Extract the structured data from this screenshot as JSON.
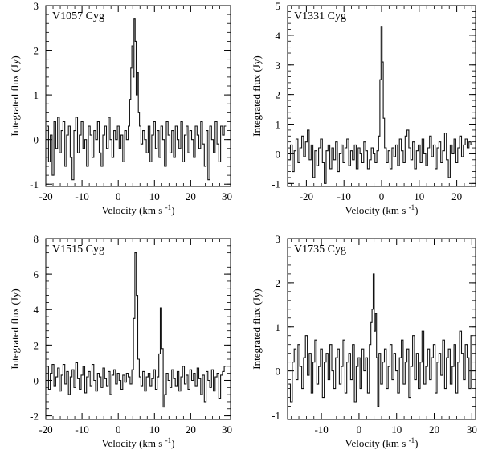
{
  "chart_data": [
    {
      "type": "line",
      "title": "V1057 Cyg",
      "xlabel": "Velocity (km s",
      "xlabel_sup": "-1",
      "xlabel_end": ")",
      "ylabel": "Integrated flux (Jy)",
      "xlim": [
        -20,
        31
      ],
      "ylim": [
        -1.05,
        3
      ],
      "xticks": [
        -20,
        -10,
        0,
        10,
        20,
        30
      ],
      "xtick_labels": [
        "-20",
        "-10",
        "0",
        "10",
        "20",
        "30"
      ],
      "yticks": [
        -1,
        0,
        1,
        2,
        3
      ],
      "ytick_labels": [
        "-1",
        "0",
        "1",
        "2",
        "3"
      ],
      "series": [
        {
          "name": "V1057 Cyg",
          "x": [
            -19.5,
            -19,
            -18.5,
            -18,
            -17.5,
            -17,
            -16.5,
            -16,
            -15.5,
            -15,
            -14.5,
            -14,
            -13.5,
            -13,
            -12.5,
            -12,
            -11.5,
            -11,
            -10.5,
            -10,
            -9.5,
            -9,
            -8.5,
            -8,
            -7.5,
            -7,
            -6.5,
            -6,
            -5.5,
            -5,
            -4.5,
            -4,
            -3.5,
            -3,
            -2.5,
            -2,
            -1.5,
            -1,
            -0.5,
            0,
            0.5,
            1,
            1.5,
            2,
            2.5,
            3,
            3.3,
            3.6,
            3.9,
            4.2,
            4.5,
            4.8,
            5.1,
            5.4,
            5.7,
            6,
            6.5,
            7,
            7.5,
            8,
            8.5,
            9,
            9.5,
            10,
            10.5,
            11,
            11.5,
            12,
            12.5,
            13,
            13.5,
            14,
            14.5,
            15,
            15.5,
            16,
            16.5,
            17,
            17.5,
            18,
            18.5,
            19,
            19.5,
            20,
            20.5,
            21,
            21.5,
            22,
            22.5,
            23,
            23.5,
            24,
            24.5,
            25,
            25.5,
            26,
            26.5,
            27,
            27.5,
            28,
            28.5,
            29,
            29.5
          ],
          "y": [
            0.3,
            -0.5,
            0.1,
            -0.8,
            0.4,
            -0.2,
            0.5,
            -0.3,
            0.2,
            0.4,
            -0.6,
            0.1,
            0.3,
            -0.4,
            -0.9,
            0.2,
            0.5,
            -0.3,
            0.1,
            0.4,
            -0.2,
            0.0,
            -0.6,
            0.3,
            0.1,
            -0.4,
            0.2,
            0.0,
            0.4,
            -0.3,
            -0.6,
            0.1,
            0.3,
            -0.2,
            0.5,
            0.0,
            -0.4,
            0.2,
            0.0,
            0.3,
            -0.2,
            0.1,
            -0.5,
            0.2,
            0.0,
            0.3,
            0.9,
            1.6,
            2.1,
            1.4,
            2.7,
            2.2,
            1.0,
            1.5,
            0.6,
            0.3,
            -0.1,
            0.2,
            0.0,
            -0.3,
            0.3,
            -0.5,
            0.1,
            0.4,
            -0.2,
            0.2,
            -0.4,
            0.3,
            0.0,
            -0.6,
            0.4,
            0.1,
            -0.3,
            0.2,
            -0.4,
            0.3,
            0.0,
            -0.2,
            0.4,
            -0.5,
            0.1,
            0.3,
            -0.3,
            0.2,
            0.0,
            -0.4,
            0.3,
            0.1,
            -0.2,
            0.4,
            -0.1,
            -0.6,
            0.2,
            -0.9,
            0.3,
            0.0,
            -0.3,
            0.4,
            -0.1,
            -0.5,
            0.3,
            0.1,
            0.3
          ]
        }
      ]
    },
    {
      "type": "line",
      "title": "V1331 Cyg",
      "xlabel": "Velocity (km s",
      "xlabel_sup": "-1",
      "xlabel_end": ")",
      "ylabel": "Integrated flux (Jy)",
      "xlim": [
        -25,
        25
      ],
      "ylim": [
        -1.1,
        5
      ],
      "xticks": [
        -20,
        -10,
        0,
        10,
        20
      ],
      "xtick_labels": [
        "-20",
        "-10",
        "0",
        "10",
        "20"
      ],
      "yticks": [
        -1,
        0,
        1,
        2,
        3,
        4,
        5
      ],
      "ytick_labels": [
        "-1",
        "0",
        "1",
        "2",
        "3",
        "4",
        "5"
      ],
      "series": [
        {
          "name": "V1331 Cyg",
          "x": [
            -24.5,
            -24,
            -23.5,
            -23,
            -22.5,
            -22,
            -21.5,
            -21,
            -20.5,
            -20,
            -19.5,
            -19,
            -18.5,
            -18,
            -17.5,
            -17,
            -16.5,
            -16,
            -15.5,
            -15,
            -14.5,
            -14,
            -13.5,
            -13,
            -12.5,
            -12,
            -11.5,
            -11,
            -10.5,
            -10,
            -9.5,
            -9,
            -8.5,
            -8,
            -7.5,
            -7,
            -6.5,
            -6,
            -5.5,
            -5,
            -4.5,
            -4,
            -3.5,
            -3,
            -2.5,
            -2,
            -1.5,
            -1,
            -0.6,
            -0.3,
            0,
            0.3,
            0.6,
            1,
            1.5,
            2,
            2.5,
            3,
            3.5,
            4,
            4.5,
            5,
            5.5,
            6,
            6.5,
            7,
            7.5,
            8,
            8.5,
            9,
            9.5,
            10,
            10.5,
            11,
            11.5,
            12,
            12.5,
            13,
            13.5,
            14,
            14.5,
            15,
            15.5,
            16,
            16.5,
            17,
            17.5,
            18,
            18.5,
            19,
            19.5,
            20,
            20.5,
            21,
            21.5,
            22,
            22.5,
            23,
            23.5,
            24
          ],
          "y": [
            -0.2,
            0.3,
            -0.6,
            0.1,
            0.5,
            -0.3,
            0.2,
            0.6,
            -0.1,
            0.4,
            0.8,
            -0.2,
            0.3,
            -0.8,
            0.1,
            -0.4,
            0.2,
            0.5,
            -0.3,
            -1.0,
            0.1,
            0.3,
            -0.5,
            0.2,
            -0.2,
            0.4,
            -0.6,
            0.0,
            0.3,
            -0.3,
            0.2,
            0.5,
            -0.4,
            0.1,
            -0.2,
            0.3,
            -0.5,
            0.2,
            0.0,
            -0.3,
            0.4,
            0.1,
            -0.5,
            -0.2,
            0.2,
            0.0,
            -0.3,
            0.1,
            0.6,
            2.5,
            4.3,
            3.1,
            1.2,
            0.2,
            -0.3,
            0.1,
            -0.5,
            0.2,
            -0.1,
            0.3,
            -0.4,
            0.5,
            0.1,
            -0.3,
            0.6,
            0.8,
            0.2,
            -0.2,
            0.4,
            -0.5,
            0.1,
            0.3,
            -0.3,
            0.5,
            0.0,
            -0.4,
            0.2,
            0.6,
            -0.1,
            0.3,
            -0.5,
            0.2,
            0.4,
            -0.3,
            0.1,
            0.7,
            -0.2,
            -0.8,
            0.3,
            0.0,
            0.5,
            -0.3,
            0.2,
            0.6,
            -0.1,
            0.3,
            0.5,
            0.2,
            0.4,
            0.3
          ]
        }
      ]
    },
    {
      "type": "line",
      "title": "V1515 Cyg",
      "xlabel": "Velocity (km s",
      "xlabel_sup": "-1",
      "xlabel_end": ")",
      "ylabel": "Integrated flux (Jy)",
      "xlim": [
        -20,
        31
      ],
      "ylim": [
        -2.2,
        8
      ],
      "xticks": [
        -20,
        -10,
        0,
        10,
        20,
        30
      ],
      "xtick_labels": [
        "-20",
        "-10",
        "0",
        "10",
        "20",
        "30"
      ],
      "yticks": [
        -2,
        0,
        2,
        4,
        6,
        8
      ],
      "ytick_labels": [
        "-2",
        "0",
        "2",
        "4",
        "6",
        "8"
      ],
      "series": [
        {
          "name": "V1515 Cyg",
          "x": [
            -19.5,
            -19,
            -18.5,
            -18,
            -17.5,
            -17,
            -16.5,
            -16,
            -15.5,
            -15,
            -14.5,
            -14,
            -13.5,
            -13,
            -12.5,
            -12,
            -11.5,
            -11,
            -10.5,
            -10,
            -9.5,
            -9,
            -8.5,
            -8,
            -7.5,
            -7,
            -6.5,
            -6,
            -5.5,
            -5,
            -4.5,
            -4,
            -3.5,
            -3,
            -2.5,
            -2,
            -1.5,
            -1,
            -0.5,
            0,
            0.5,
            1,
            1.5,
            2,
            2.5,
            3,
            3.5,
            4,
            4.4,
            4.8,
            5.2,
            5.6,
            6,
            6.5,
            7,
            7.5,
            8,
            8.5,
            9,
            9.5,
            10,
            10.5,
            11,
            11.4,
            11.8,
            12.2,
            12.6,
            13,
            13.5,
            14,
            14.5,
            15,
            15.5,
            16,
            16.5,
            17,
            17.5,
            18,
            18.5,
            19,
            19.5,
            20,
            20.5,
            21,
            21.5,
            22,
            22.5,
            23,
            23.5,
            24,
            24.5,
            25,
            25.5,
            26,
            26.5,
            27,
            27.5,
            28,
            28.5,
            29,
            29.5
          ],
          "y": [
            0.8,
            -0.5,
            0.4,
            0.9,
            -0.3,
            0.2,
            0.7,
            -0.6,
            0.3,
            0.9,
            -0.2,
            0.5,
            -0.8,
            0.2,
            0.6,
            -0.4,
            1.0,
            0.1,
            -0.5,
            0.3,
            0.8,
            -0.7,
            0.2,
            0.5,
            -0.3,
            0.9,
            0.0,
            -0.6,
            0.4,
            0.2,
            -0.4,
            0.7,
            0.1,
            -0.3,
            0.5,
            -0.8,
            0.3,
            0.6,
            -0.2,
            0.4,
            0.0,
            -0.5,
            0.3,
            -0.1,
            0.4,
            0.2,
            -0.2,
            0.6,
            3.5,
            7.2,
            4.8,
            1.2,
            0.2,
            -0.3,
            0.5,
            -0.6,
            0.2,
            0.4,
            -0.3,
            0.1,
            0.6,
            -0.5,
            0.2,
            1.5,
            4.1,
            1.8,
            -1.5,
            -0.8,
            0.4,
            0.0,
            -0.4,
            0.6,
            0.1,
            -0.3,
            0.5,
            -0.6,
            0.2,
            0.8,
            -0.2,
            0.3,
            -0.5,
            0.6,
            0.0,
            0.4,
            -0.3,
            0.7,
            0.1,
            -0.8,
            0.3,
            -1.2,
            0.5,
            0.0,
            -0.4,
            0.6,
            -0.6,
            0.2,
            0.4,
            -1.0,
            0.3,
            0.5,
            0.8
          ]
        }
      ]
    },
    {
      "type": "line",
      "title": "V1735 Cyg",
      "xlabel": "Velocity (km s",
      "xlabel_sup": "-1",
      "xlabel_end": ")",
      "ylabel": "Integrated flux (Jy)",
      "xlim": [
        -19,
        31
      ],
      "ylim": [
        -1.1,
        3
      ],
      "xticks": [
        -10,
        0,
        10,
        20,
        30
      ],
      "xtick_labels": [
        "-10",
        "0",
        "10",
        "20",
        "30"
      ],
      "yticks": [
        -1,
        0,
        1,
        2,
        3
      ],
      "ytick_labels": [
        "-1",
        "0",
        "1",
        "2",
        "3"
      ],
      "series": [
        {
          "name": "V1735 Cyg",
          "x": [
            -18.5,
            -18,
            -17.5,
            -17,
            -16.5,
            -16,
            -15.5,
            -15,
            -14.5,
            -14,
            -13.5,
            -13,
            -12.5,
            -12,
            -11.5,
            -11,
            -10.5,
            -10,
            -9.5,
            -9,
            -8.5,
            -8,
            -7.5,
            -7,
            -6.5,
            -6,
            -5.5,
            -5,
            -4.5,
            -4,
            -3.5,
            -3,
            -2.5,
            -2,
            -1.5,
            -1,
            -0.5,
            0,
            0.5,
            1,
            1.5,
            2,
            2.5,
            3,
            3.3,
            3.6,
            3.9,
            4.2,
            4.5,
            4.8,
            5.1,
            5.5,
            6,
            6.5,
            7,
            7.5,
            8,
            8.5,
            9,
            9.5,
            10,
            10.5,
            11,
            11.5,
            12,
            12.5,
            13,
            13.5,
            14,
            14.5,
            15,
            15.5,
            16,
            16.5,
            17,
            17.5,
            18,
            18.5,
            19,
            19.5,
            20,
            20.5,
            21,
            21.5,
            22,
            22.5,
            23,
            23.5,
            24,
            24.5,
            25,
            25.5,
            26,
            26.5,
            27,
            27.5,
            28,
            28.5,
            29,
            29.5,
            30
          ],
          "y": [
            -0.3,
            -0.7,
            0.2,
            0.5,
            -0.2,
            0.6,
            0.1,
            -0.4,
            0.3,
            0.8,
            -0.1,
            0.4,
            -0.5,
            0.2,
            0.7,
            -0.3,
            0.1,
            0.5,
            -0.6,
            0.2,
            0.4,
            -0.2,
            0.6,
            0.0,
            -0.4,
            0.3,
            0.5,
            -0.3,
            0.1,
            0.7,
            -0.5,
            0.2,
            0.4,
            -0.2,
            0.6,
            -0.7,
            0.1,
            0.3,
            -0.4,
            0.5,
            0.0,
            0.3,
            -0.5,
            0.6,
            1.1,
            1.4,
            2.2,
            0.9,
            1.3,
            0.3,
            -0.8,
            0.4,
            -0.3,
            0.2,
            0.5,
            -0.4,
            0.1,
            0.6,
            -0.2,
            0.4,
            0.0,
            -0.5,
            0.3,
            0.7,
            -0.3,
            0.2,
            0.5,
            -0.6,
            0.1,
            0.8,
            -0.2,
            0.4,
            -0.4,
            0.2,
            0.9,
            -0.3,
            0.1,
            0.5,
            -0.2,
            0.3,
            0.6,
            -0.5,
            0.2,
            0.4,
            -0.1,
            0.7,
            -0.4,
            0.3,
            0.5,
            -0.3,
            0.1,
            0.6,
            -0.5,
            0.2,
            0.9,
            0.4,
            -0.2,
            0.6,
            0.3,
            -0.4,
            0.8
          ]
        }
      ]
    }
  ]
}
